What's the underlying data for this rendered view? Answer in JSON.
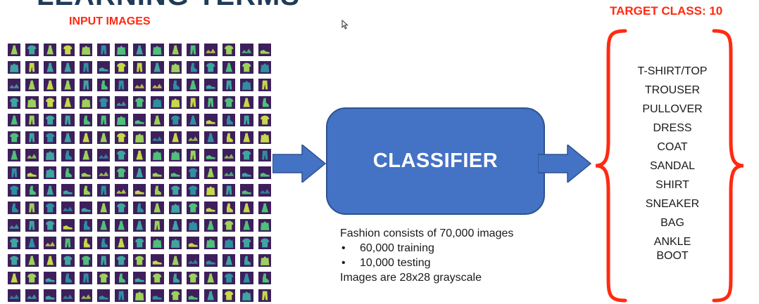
{
  "slide": {
    "title": "LEARNING TERMS",
    "input_heading": "INPUT IMAGES",
    "target_heading": "TARGET CLASS: 10",
    "classifier_label": "CLASSIFIER",
    "description": {
      "intro": "Fashion consists of 70,000 images",
      "bullets": [
        "60,000 training",
        "10,000 testing"
      ],
      "footer": "Images are 28x28 grayscale"
    },
    "classes": [
      "T-SHIRT/TOP",
      "TROUSER",
      "PULLOVER",
      "DRESS",
      "COAT",
      "SANDAL",
      "SHIRT",
      "SNEAKER",
      "BAG",
      "ANKLE BOOT"
    ]
  },
  "colors": {
    "heading_red": "#ff2a12",
    "classifier_fill": "#4472c4",
    "arrow_fill": "#4472c4",
    "thumb_background": "#3e1f5c",
    "thumb_item": "#4fc07a",
    "title_navy": "#1f3b57"
  },
  "icons": {
    "cursor": "mouse-pointer-icon",
    "arrow": "right-arrow-icon",
    "brace": "curly-brace-icon"
  }
}
